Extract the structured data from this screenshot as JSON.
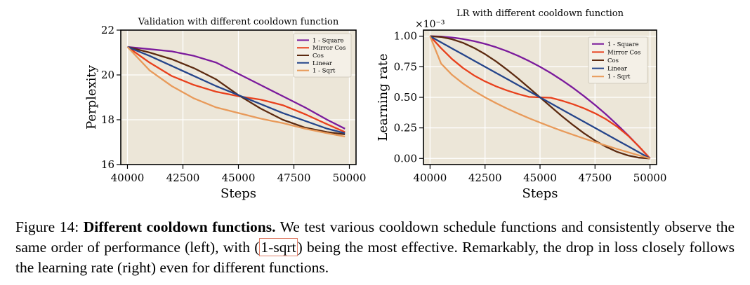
{
  "chart_data": [
    {
      "type": "line",
      "title": "Validation with different cooldown function",
      "xlabel": "Steps",
      "ylabel": "Perplexity",
      "xlim": [
        39700,
        50300
      ],
      "ylim": [
        16,
        22
      ],
      "xticks": [
        40000,
        42500,
        45000,
        47500,
        50000
      ],
      "yticks": [
        16,
        18,
        20,
        22
      ],
      "legend_position": "top-right",
      "x": [
        40000,
        41000,
        42000,
        43000,
        44000,
        45000,
        46000,
        47000,
        48000,
        49000,
        49800
      ],
      "series": [
        {
          "name": "1 - Square",
          "color": "#7b1a9c",
          "values": [
            21.25,
            21.15,
            21.05,
            20.85,
            20.55,
            20.05,
            19.55,
            19.05,
            18.55,
            18.0,
            17.6
          ]
        },
        {
          "name": "Mirror Cos",
          "color": "#e8401c",
          "values": [
            21.25,
            20.55,
            19.95,
            19.55,
            19.25,
            19.05,
            18.9,
            18.65,
            18.25,
            17.8,
            17.45
          ]
        },
        {
          "name": "Cos",
          "color": "#5c2a10",
          "values": [
            21.25,
            21.0,
            20.7,
            20.3,
            19.8,
            19.1,
            18.5,
            18.0,
            17.65,
            17.45,
            17.35
          ]
        },
        {
          "name": "Linear",
          "color": "#24448a",
          "values": [
            21.25,
            20.85,
            20.4,
            19.95,
            19.5,
            19.1,
            18.7,
            18.3,
            17.95,
            17.6,
            17.4
          ]
        },
        {
          "name": "1 - Sqrt",
          "color": "#e89a5a",
          "values": [
            21.25,
            20.2,
            19.5,
            18.95,
            18.55,
            18.3,
            18.05,
            17.85,
            17.6,
            17.4,
            17.25
          ]
        }
      ]
    },
    {
      "type": "line",
      "title": "LR with different cooldown function",
      "xlabel": "Steps",
      "ylabel": "Learning rate",
      "axis_multiplier": "×10⁻³",
      "xlim": [
        39700,
        50300
      ],
      "ylim": [
        -0.05,
        1.05
      ],
      "xticks": [
        40000,
        42500,
        45000,
        47500,
        50000
      ],
      "yticks": [
        0.0,
        0.25,
        0.5,
        0.75,
        1.0
      ],
      "ytick_labels": [
        "0.00",
        "0.25",
        "0.50",
        "0.75",
        "1.00"
      ],
      "legend_position": "top-right",
      "x": [
        40000,
        40500,
        41000,
        41500,
        42000,
        42500,
        43000,
        43500,
        44000,
        44500,
        45000,
        45500,
        46000,
        46500,
        47000,
        47500,
        48000,
        48500,
        49000,
        49500,
        50000
      ],
      "series": [
        {
          "name": "1 - Square",
          "color": "#7b1a9c",
          "values": [
            1.0,
            0.9975,
            0.99,
            0.9775,
            0.96,
            0.9375,
            0.91,
            0.8775,
            0.84,
            0.7975,
            0.75,
            0.6975,
            0.64,
            0.5775,
            0.51,
            0.4375,
            0.36,
            0.2775,
            0.19,
            0.0975,
            0.0
          ]
        },
        {
          "name": "Mirror Cos",
          "color": "#e8401c",
          "values": [
            1.0,
            0.9022,
            0.8136,
            0.7396,
            0.6792,
            0.6306,
            0.5902,
            0.5561,
            0.5276,
            0.5032,
            0.5,
            0.4968,
            0.4724,
            0.4439,
            0.4098,
            0.3694,
            0.3208,
            0.2604,
            0.1864,
            0.0978,
            0.0
          ]
        },
        {
          "name": "Cos",
          "color": "#5c2a10",
          "values": [
            1.0,
            0.9938,
            0.9755,
            0.9455,
            0.9045,
            0.8536,
            0.7939,
            0.727,
            0.6545,
            0.5782,
            0.5,
            0.4218,
            0.3455,
            0.273,
            0.2061,
            0.1464,
            0.0955,
            0.0545,
            0.0245,
            0.0062,
            0.0
          ]
        },
        {
          "name": "Linear",
          "color": "#24448a",
          "values": [
            1.0,
            0.95,
            0.9,
            0.85,
            0.8,
            0.75,
            0.7,
            0.65,
            0.6,
            0.55,
            0.5,
            0.45,
            0.4,
            0.35,
            0.3,
            0.25,
            0.2,
            0.15,
            0.1,
            0.05,
            0.0
          ]
        },
        {
          "name": "1 - Sqrt",
          "color": "#e89a5a",
          "values": [
            1.0,
            0.7764,
            0.6838,
            0.6127,
            0.5528,
            0.5,
            0.4523,
            0.4084,
            0.3675,
            0.3292,
            0.2929,
            0.2584,
            0.2254,
            0.1938,
            0.1634,
            0.134,
            0.1056,
            0.078,
            0.0513,
            0.0253,
            0.0
          ]
        }
      ]
    }
  ],
  "caption": {
    "label": "Figure 14:",
    "bold": "Different cooldown functions.",
    "text1": "We test various cooldown schedule functions and consistently observe the same order of performance (left), with (",
    "highlight": "1-sqrt",
    "text2": ") being the most effective. Remarkably, the drop in loss closely follows the learning rate (right) even for different functions."
  }
}
